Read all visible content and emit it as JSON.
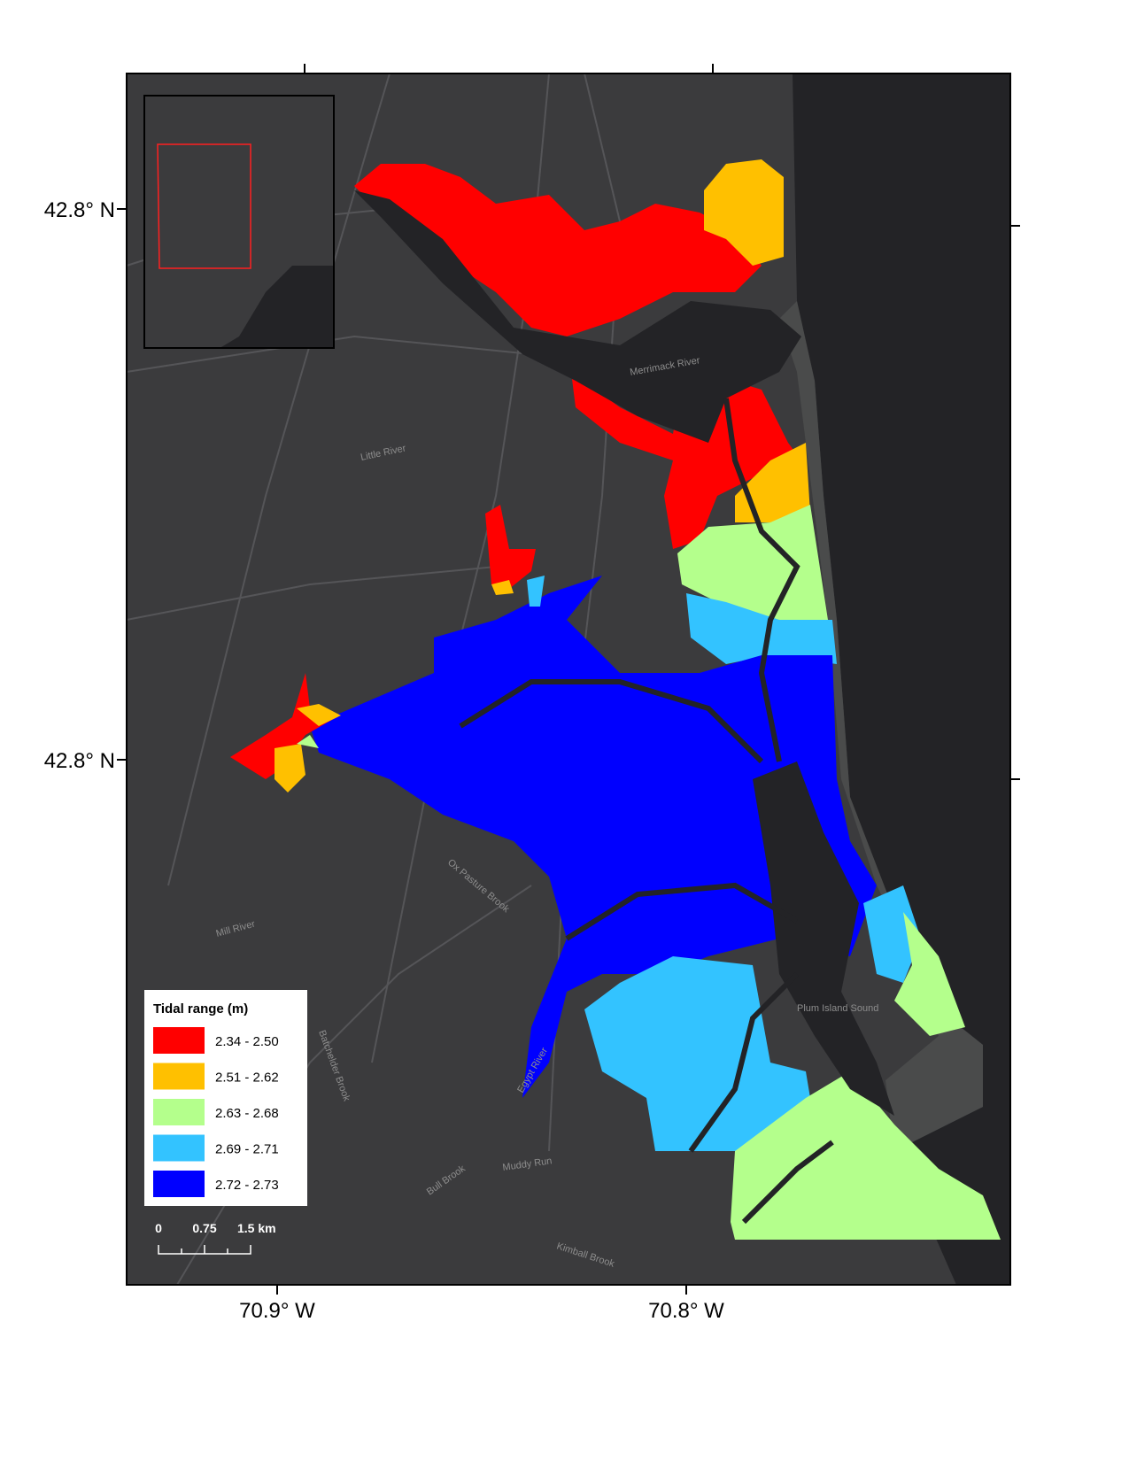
{
  "map": {
    "lat_labels": [
      "42.8° N",
      "42.8° N"
    ],
    "lon_labels": [
      "70.9° W",
      "70.8° W"
    ],
    "place_labels": [
      "Merrimack River",
      "Little River",
      "Ox Pasture Brook",
      "Mill River",
      "Plum Island Sound",
      "Muddy Run",
      "Bull Brook",
      "Kimball Brook",
      "Batchelder Brook",
      "Egypt River"
    ],
    "legend": {
      "title": "Tidal range (m)",
      "entries": [
        {
          "label": "2.34 - 2.50",
          "color": "#ff0000"
        },
        {
          "label": "2.51 - 2.62",
          "color": "#ffc000"
        },
        {
          "label": "2.63 - 2.68",
          "color": "#b4ff8c"
        },
        {
          "label": "2.69 - 2.71",
          "color": "#33c3ff"
        },
        {
          "label": "2.72 - 2.73",
          "color": "#0000ff"
        }
      ]
    },
    "scale_bar": [
      "0",
      "0.75",
      "1.5 km"
    ]
  }
}
